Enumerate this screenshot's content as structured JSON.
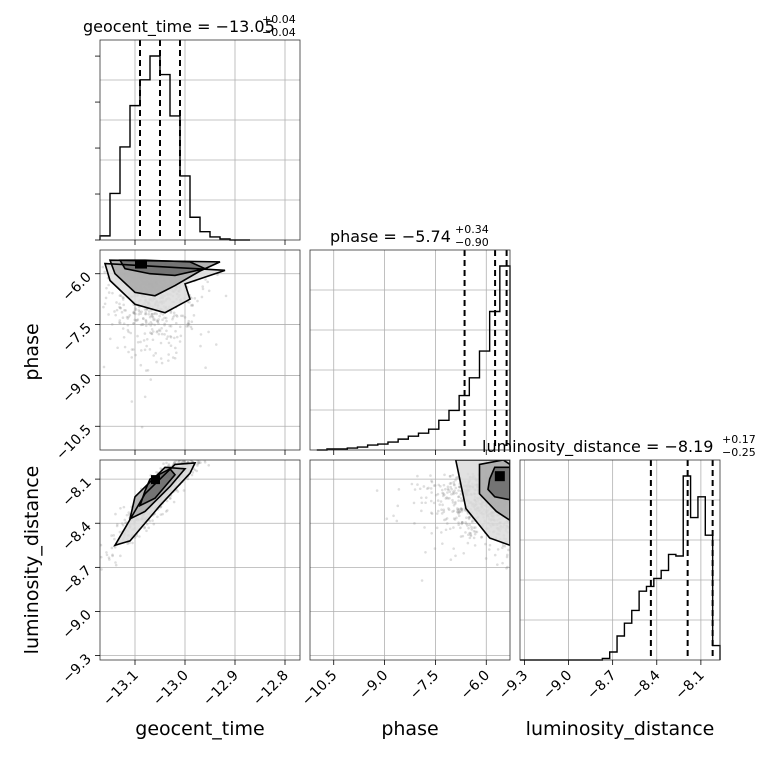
{
  "chart_data": {
    "type": "corner",
    "parameters": [
      "geocent_time",
      "phase",
      "luminosity_distance"
    ],
    "grid": true,
    "axes": {
      "geocent_time": {
        "range": [
          -13.17,
          -12.77
        ],
        "ticks": [
          -13.1,
          -13.0,
          -12.9,
          -12.8
        ],
        "tick_labels": [
          "−13.1",
          "−13.0",
          "−12.9",
          "−12.8"
        ],
        "xlabel": "geocent_time"
      },
      "phase": {
        "range": [
          -11.2,
          -5.3
        ],
        "ticks": [
          -10.5,
          -9.0,
          -7.5,
          -6.0
        ],
        "tick_labels": [
          "−10.5",
          "−9.0",
          "−7.5",
          "−6.0"
        ],
        "xlabel": "phase",
        "ylabel": "phase"
      },
      "luminosity_distance": {
        "range": [
          -9.33,
          -7.97
        ],
        "ticks": [
          -9.3,
          -9.0,
          -8.7,
          -8.4,
          -8.1
        ],
        "tick_labels": [
          "−9.3",
          "−9.0",
          "−8.7",
          "−8.4",
          "−8.1"
        ],
        "xlabel": "luminosity_distance",
        "ylabel": "luminosity_distance"
      }
    },
    "marginals": [
      {
        "parameter": "geocent_time",
        "title_main": "geocent_time = −13.05",
        "title_sup": "+0.04",
        "title_sub": "−0.04",
        "median": -13.05,
        "q16": -13.09,
        "q84": -13.01,
        "bin_edges": [
          -13.17,
          -13.15,
          -13.13,
          -13.11,
          -13.09,
          -13.07,
          -13.05,
          -13.03,
          -13.01,
          -12.99,
          -12.97,
          -12.95,
          -12.93,
          -12.91,
          -12.89,
          -12.87
        ],
        "counts": [
          4,
          45,
          90,
          130,
          155,
          178,
          160,
          120,
          62,
          22,
          8,
          3,
          1,
          0,
          0
        ]
      },
      {
        "parameter": "phase",
        "title_main": "phase = −5.74",
        "title_sup": "+0.34",
        "title_sub": "−0.90",
        "median": -5.74,
        "q16": -6.64,
        "q84": -5.4,
        "bin_edges": [
          -11.0,
          -10.7,
          -10.4,
          -10.1,
          -9.8,
          -9.5,
          -9.2,
          -8.9,
          -8.6,
          -8.3,
          -8.0,
          -7.7,
          -7.4,
          -7.1,
          -6.8,
          -6.5,
          -6.2,
          -5.9,
          -5.6,
          -5.3
        ],
        "counts": [
          0,
          1,
          1,
          2,
          3,
          5,
          6,
          8,
          11,
          14,
          17,
          21,
          30,
          40,
          55,
          73,
          100,
          140,
          186
        ]
      },
      {
        "parameter": "luminosity_distance",
        "title_main": "luminosity_distance = −8.19",
        "title_sup": "+0.17",
        "title_sub": "−0.25",
        "median": -8.19,
        "q16": -8.44,
        "q84": -8.02,
        "bin_edges": [
          -9.33,
          -8.77,
          -8.72,
          -8.67,
          -8.62,
          -8.57,
          -8.52,
          -8.47,
          -8.42,
          -8.37,
          -8.32,
          -8.27,
          -8.22,
          -8.17,
          -8.12,
          -8.07,
          -8.02,
          -7.97
        ],
        "counts": [
          0,
          1,
          5,
          15,
          23,
          31,
          43,
          46,
          51,
          56,
          66,
          65,
          115,
          89,
          102,
          78,
          9
        ]
      }
    ],
    "joint_panels": [
      {
        "x": "geocent_time",
        "y": "phase",
        "n_points": 700,
        "description": "dense near phase -6 to -7.5 around geocent_time -13.06, tail to lower phase",
        "contours_level_points": [
          [
            [
              -13.13,
              -5.6
            ],
            [
              -13.08,
              -5.6
            ],
            [
              -12.99,
              -5.65
            ],
            [
              -12.96,
              -5.85
            ],
            [
              -13.02,
              -6.05
            ],
            [
              -13.07,
              -6.0
            ],
            [
              -13.12,
              -5.85
            ],
            [
              -13.13,
              -5.6
            ]
          ],
          [
            [
              -13.15,
              -5.6
            ],
            [
              -12.93,
              -5.65
            ],
            [
              -12.97,
              -5.92
            ],
            [
              -13.02,
              -6.35
            ],
            [
              -13.06,
              -6.65
            ],
            [
              -13.1,
              -6.55
            ],
            [
              -13.14,
              -6.0
            ],
            [
              -13.15,
              -5.6
            ]
          ],
          [
            [
              -13.16,
              -5.7
            ],
            [
              -12.92,
              -5.9
            ],
            [
              -13.0,
              -6.3
            ],
            [
              -12.99,
              -6.75
            ],
            [
              -13.04,
              -7.15
            ],
            [
              -13.1,
              -6.9
            ],
            [
              -13.15,
              -6.2
            ],
            [
              -13.16,
              -5.7
            ]
          ]
        ]
      },
      {
        "x": "geocent_time",
        "y": "luminosity_distance",
        "n_points": 800,
        "description": "strongly correlated diagonal band",
        "contours_level_points": [
          [
            [
              -13.07,
              -8.1
            ],
            [
              -13.03,
              -8.03
            ],
            [
              -13.02,
              -8.07
            ],
            [
              -13.06,
              -8.23
            ],
            [
              -13.09,
              -8.28
            ],
            [
              -13.08,
              -8.18
            ],
            [
              -13.07,
              -8.1
            ]
          ],
          [
            [
              -13.1,
              -8.22
            ],
            [
              -13.04,
              -8.02
            ],
            [
              -13.0,
              -8.03
            ],
            [
              -13.03,
              -8.15
            ],
            [
              -13.08,
              -8.32
            ],
            [
              -13.11,
              -8.37
            ],
            [
              -13.1,
              -8.22
            ]
          ],
          [
            [
              -13.14,
              -8.55
            ],
            [
              -13.08,
              -8.2
            ],
            [
              -13.02,
              -8.0
            ],
            [
              -12.98,
              -7.99
            ],
            [
              -12.99,
              -8.06
            ],
            [
              -13.05,
              -8.28
            ],
            [
              -13.11,
              -8.52
            ],
            [
              -13.14,
              -8.55
            ]
          ]
        ]
      },
      {
        "x": "phase",
        "y": "luminosity_distance",
        "n_points": 800,
        "description": "concentrated at high phase and luminosity_distance near -8.1",
        "contours_level_points": [
          [
            [
              -5.9,
              -8.1
            ],
            [
              -5.75,
              -8.02
            ],
            [
              -5.3,
              -8.02
            ],
            [
              -5.3,
              -8.24
            ],
            [
              -5.75,
              -8.22
            ],
            [
              -5.95,
              -8.17
            ],
            [
              -5.9,
              -8.1
            ]
          ],
          [
            [
              -6.2,
              -8.0
            ],
            [
              -5.5,
              -7.97
            ],
            [
              -5.3,
              -8.0
            ],
            [
              -5.3,
              -8.38
            ],
            [
              -5.7,
              -8.32
            ],
            [
              -6.2,
              -8.2
            ],
            [
              -6.2,
              -8.0
            ]
          ],
          [
            [
              -6.9,
              -7.97
            ],
            [
              -5.3,
              -7.97
            ],
            [
              -5.3,
              -8.55
            ],
            [
              -5.9,
              -8.5
            ],
            [
              -6.6,
              -8.3
            ],
            [
              -6.9,
              -7.97
            ]
          ]
        ],
        "peak_marker": {
          "x": -5.6,
          "y": -8.08
        }
      }
    ]
  }
}
